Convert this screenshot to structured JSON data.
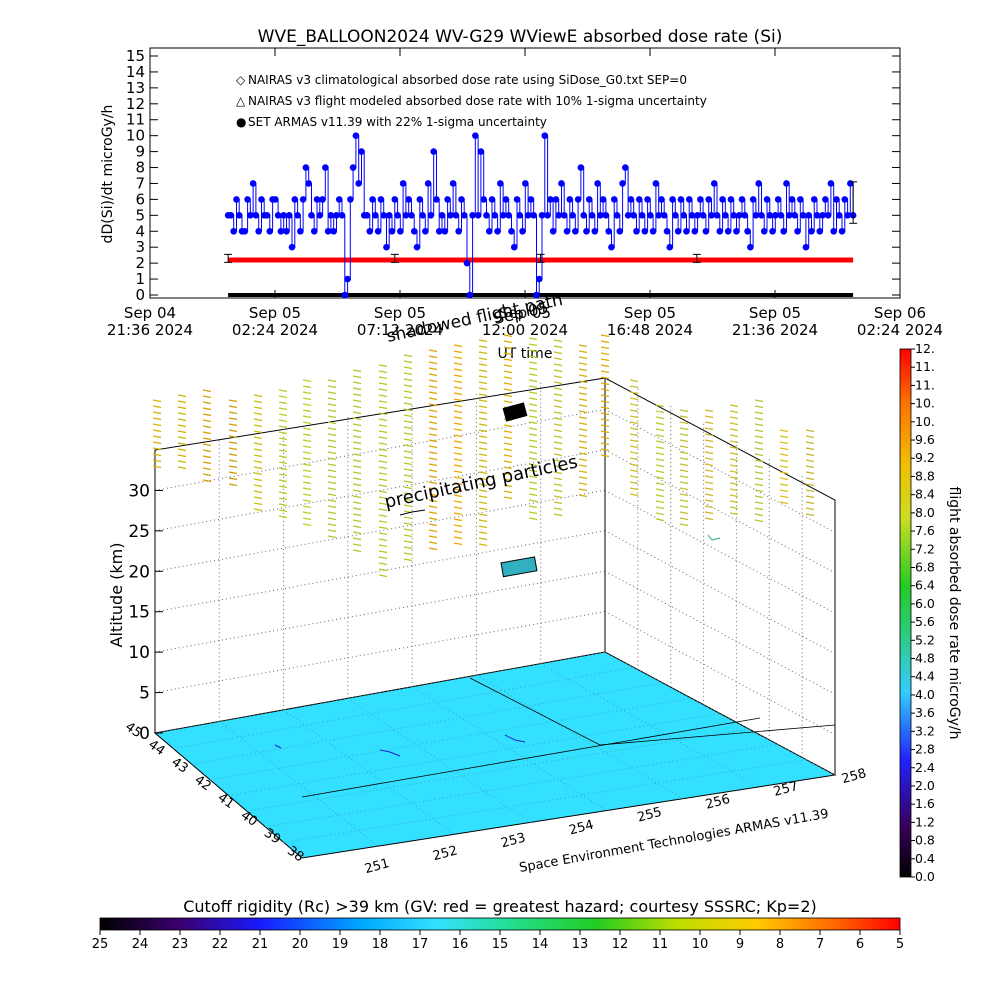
{
  "figure_title": "WVE_BALLOON2024 WV-G29 WViewE absorbed dose rate (Si)",
  "chart_data": [
    {
      "type": "line",
      "title": "WVE_BALLOON2024 WV-G29 WViewE absorbed dose rate (Si)",
      "ylabel": "dD(Si)/dt microGy/h",
      "xlabel": "UT time",
      "ylim": [
        0,
        15
      ],
      "yticks": [
        "0",
        "1",
        "2",
        "3",
        "4",
        "5",
        "6",
        "7",
        "8",
        "9",
        "10",
        "11",
        "12",
        "13",
        "14",
        "15"
      ],
      "xticks": [
        {
          "l1": "Sep 04",
          "l2": "21:36 2024"
        },
        {
          "l1": "Sep 05",
          "l2": "02:24 2024"
        },
        {
          "l1": "Sep 05",
          "l2": "07:12 2024"
        },
        {
          "l1": "Sep 05",
          "l2": "12:00 2024"
        },
        {
          "l1": "Sep 05",
          "l2": "16:48 2024"
        },
        {
          "l1": "Sep 05",
          "l2": "21:36 2024"
        },
        {
          "l1": "Sep 06",
          "l2": "02:24 2024"
        }
      ],
      "x_range_hours": [
        0,
        28.8
      ],
      "legend": [
        {
          "marker": "◇",
          "color": "#ff0000",
          "text": "NAIRAS v3 climatological absorbed dose rate using SiDose_G0.txt SEP=0"
        },
        {
          "marker": "△",
          "color": "#000000",
          "text": "NAIRAS v3 flight modeled absorbed dose rate with 10% 1-sigma uncertainty"
        },
        {
          "marker": "●",
          "color": "#0000ff",
          "text": "SET ARMAS v11.39 with 22% 1-sigma uncertainty"
        }
      ],
      "legend_position": "top-left",
      "annotations": [
        "shadowed flight path",
        "Sep 05"
      ],
      "series": [
        {
          "name": "NAIRAS v3 climatological absorbed dose rate using SiDose_G0.txt SEP=0",
          "color": "#ff0000",
          "x_hours": [
            3.0,
            27.0
          ],
          "values": [
            2.2,
            2.2
          ]
        },
        {
          "name": "NAIRAS v3 flight modeled absorbed dose rate with 10% 1-sigma uncertainty",
          "color": "#000000",
          "errorbars_x_hours": [
            3.0,
            9.4,
            15.0,
            21.0,
            27.0
          ],
          "errorbars_values": [
            2.3,
            2.3,
            2.3,
            2.3,
            5.8
          ],
          "errorbars_err": [
            0.25,
            0.25,
            0.25,
            0.25,
            1.3
          ]
        },
        {
          "name": "SET ARMAS v11.39 with 22% 1-sigma uncertainty",
          "color": "#0000ff",
          "x_start_hours": 3.0,
          "x_end_hours": 27.0,
          "values": [
            5,
            5,
            4,
            6,
            5,
            4,
            4,
            6,
            5,
            7,
            5,
            4,
            6,
            5,
            5,
            4,
            6,
            6,
            5,
            4,
            5,
            4,
            5,
            3,
            6,
            5,
            4,
            6,
            8,
            7,
            5,
            4,
            6,
            5,
            6,
            8,
            4,
            5,
            4,
            5,
            6,
            5,
            0,
            1,
            6,
            8,
            10,
            7,
            9,
            5,
            5,
            4,
            6,
            5,
            4,
            6,
            5,
            3,
            5,
            4,
            6,
            5,
            4,
            7,
            5,
            6,
            5,
            4,
            3,
            6,
            5,
            4,
            7,
            5,
            9,
            6,
            4,
            5,
            4,
            6,
            5,
            7,
            5,
            4,
            6,
            5,
            2,
            0,
            5,
            10,
            5,
            9,
            6,
            5,
            4,
            6,
            5,
            4,
            7,
            5,
            6,
            5,
            4,
            3,
            6,
            5,
            4,
            7,
            5,
            6,
            5,
            0,
            1,
            5,
            10,
            5,
            6,
            4,
            6,
            5,
            7,
            5,
            4,
            6,
            5,
            4,
            6,
            8,
            5,
            4,
            6,
            5,
            4,
            7,
            5,
            6,
            5,
            4,
            3,
            6,
            5,
            4,
            7,
            8,
            5,
            6,
            5,
            4,
            6,
            5,
            4,
            6,
            5,
            4,
            7,
            5,
            6,
            5,
            4,
            3,
            6,
            5,
            4,
            6,
            5,
            4,
            6,
            5,
            4,
            5,
            6,
            5,
            4,
            6,
            5,
            7,
            5,
            4,
            6,
            5,
            4,
            6,
            5,
            4,
            5,
            6,
            5,
            4,
            3,
            6,
            5,
            7,
            5,
            4,
            6,
            5,
            4,
            5,
            6,
            5,
            4,
            7,
            5,
            6,
            5,
            4,
            6,
            5,
            3,
            5,
            4,
            6,
            5,
            4,
            5,
            6,
            5,
            7,
            4,
            6,
            5,
            4,
            6,
            5,
            7,
            5
          ]
        },
        {
          "name": "shadowed flight path",
          "color": "#000000",
          "x_hours": [
            3.0,
            27.0
          ],
          "values": [
            0,
            0
          ]
        }
      ]
    },
    {
      "type": "scatter",
      "title": "",
      "zlabel": "Altitude (km)",
      "zlim": [
        0,
        35
      ],
      "zticks": [
        "0",
        "5",
        "10",
        "15",
        "20",
        "25",
        "30"
      ],
      "lat_ticks": [
        "38",
        "39",
        "40",
        "41",
        "42",
        "43",
        "44",
        "45"
      ],
      "day_of_year_ticks": [
        "251",
        "252",
        "253",
        "254",
        "255",
        "256",
        "257",
        "258"
      ],
      "floor_label": "Space Environment Technologies ARMAS v11.39",
      "annotation": "precipitating particles",
      "colorbar": {
        "label": "flight absorbed dose rate microGy/h",
        "ticks": [
          "0.0",
          "0.4",
          "0.8",
          "1.2",
          "1.6",
          "2.0",
          "2.4",
          "2.8",
          "3.2",
          "3.6",
          "4.0",
          "4.4",
          "4.8",
          "5.2",
          "5.6",
          "6.0",
          "6.4",
          "6.8",
          "7.2",
          "7.6",
          "8.0",
          "8.4",
          "8.8",
          "9.2",
          "9.6",
          "10.",
          "10.",
          "11.",
          "11.",
          "12."
        ]
      },
      "cutoff_bar": {
        "title": "Cutoff rigidity (Rc) >39 km (GV: red = greatest hazard; courtesy SSSRC; Kp=2)",
        "ticks": [
          "25",
          "24",
          "23",
          "22",
          "21",
          "20",
          "19",
          "18",
          "17",
          "16",
          "15",
          "14",
          "13",
          "12",
          "11",
          "10",
          "9",
          "8",
          "7",
          "6",
          "5"
        ]
      },
      "floor_color": "#33e0ff"
    }
  ]
}
